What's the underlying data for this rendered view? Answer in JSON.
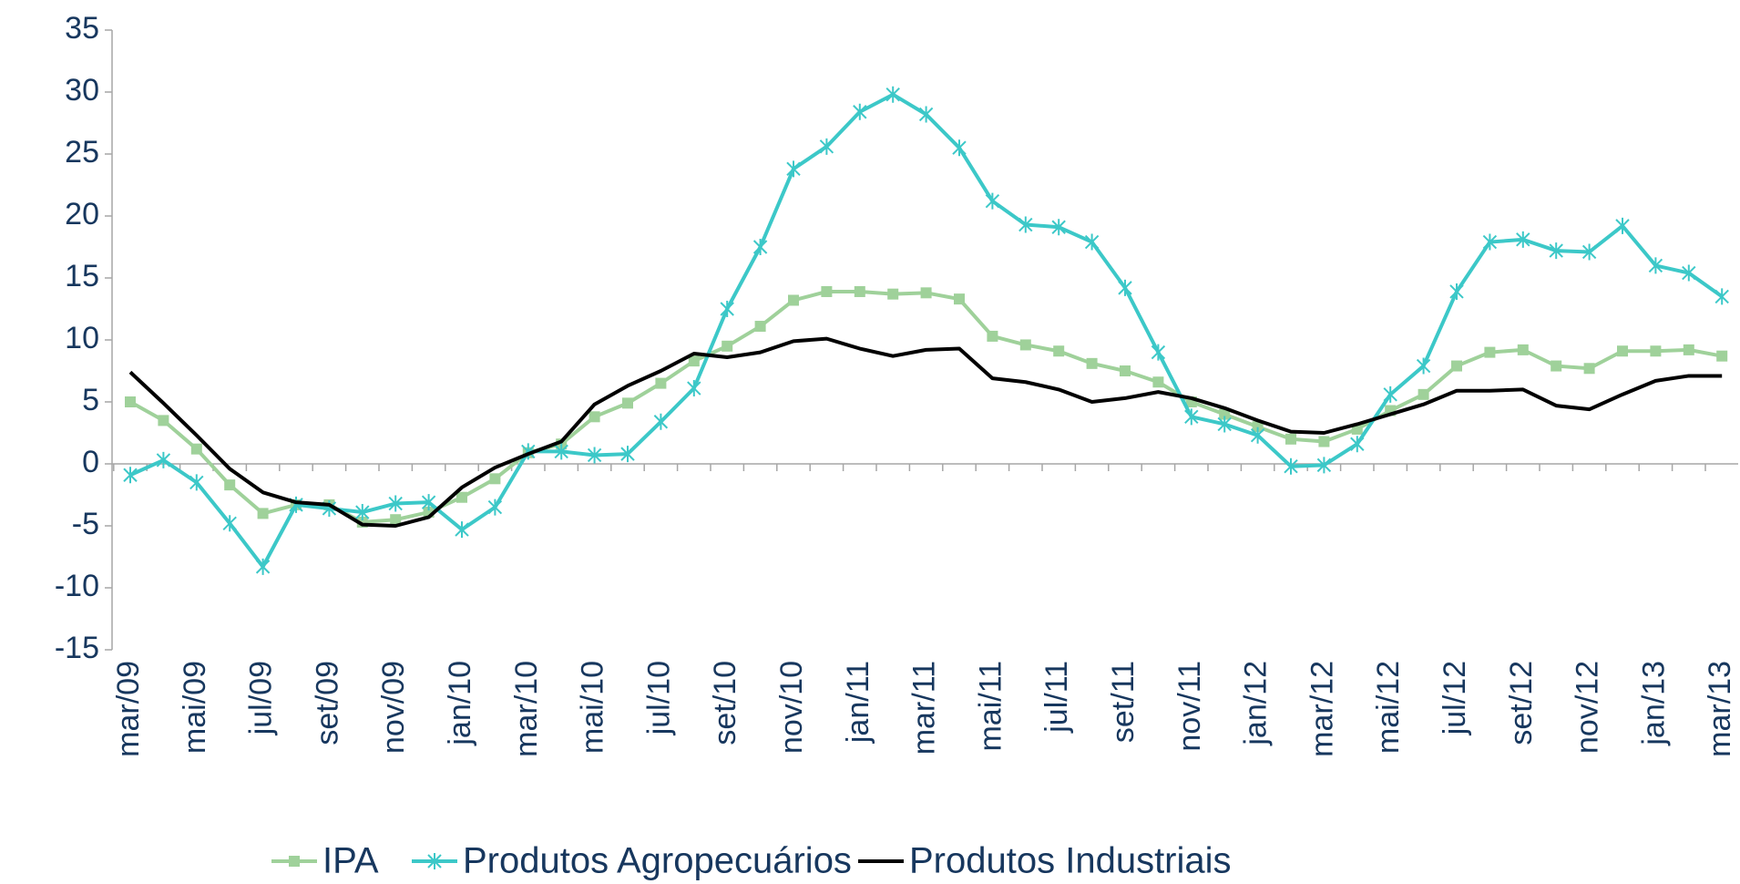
{
  "chart_data": {
    "type": "line",
    "categories": [
      "mar/09",
      null,
      "mai/09",
      null,
      "jul/09",
      null,
      "set/09",
      null,
      "nov/09",
      null,
      "jan/10",
      null,
      "mar/10",
      null,
      "mai/10",
      null,
      "jul/10",
      null,
      "set/10",
      null,
      "nov/10",
      null,
      "jan/11",
      null,
      "mar/11",
      null,
      "mai/11",
      null,
      "jul/11",
      null,
      "set/11",
      null,
      "nov/11",
      null,
      "jan/12",
      null,
      "mar/12",
      null,
      "mai/12",
      null,
      "jul/12",
      null,
      "set/12",
      null,
      "nov/12",
      null,
      "jan/13",
      null,
      "mar/13"
    ],
    "series": [
      {
        "name": "IPA",
        "color": "#9fd19a",
        "marker": "square",
        "values": [
          5.0,
          3.5,
          1.2,
          -1.7,
          -4.0,
          -3.3,
          -3.3,
          -4.7,
          -4.5,
          -3.9,
          -2.7,
          -1.2,
          0.9,
          1.6,
          3.8,
          4.9,
          6.5,
          8.3,
          9.5,
          11.1,
          13.2,
          13.9,
          13.9,
          13.7,
          13.8,
          13.3,
          10.3,
          9.6,
          9.1,
          8.1,
          7.5,
          6.6,
          5.0,
          4.0,
          3.0,
          2.0,
          1.8,
          2.8,
          4.3,
          5.6,
          7.9,
          9.0,
          9.2,
          7.9,
          7.7,
          9.1,
          9.1,
          9.2,
          8.7
        ]
      },
      {
        "name": "Produtos Agropecuários",
        "color": "#3cc8c8",
        "marker": "star",
        "values": [
          -0.9,
          0.3,
          -1.5,
          -4.8,
          -8.3,
          -3.3,
          -3.6,
          -3.9,
          -3.2,
          -3.1,
          -5.3,
          -3.5,
          1.0,
          1.0,
          0.7,
          0.8,
          3.4,
          6.1,
          12.5,
          17.5,
          23.8,
          25.6,
          28.4,
          29.8,
          28.2,
          25.5,
          21.2,
          19.3,
          19.1,
          17.9,
          14.2,
          9.0,
          3.8,
          3.2,
          2.3,
          -0.2,
          -0.1,
          1.6,
          5.6,
          7.9,
          13.9,
          17.9,
          18.1,
          17.2,
          17.1,
          19.2,
          16.0,
          15.4,
          13.5
        ]
      },
      {
        "name": "Produtos Industriais",
        "color": "#000000",
        "marker": "none",
        "values": [
          7.4,
          4.9,
          2.3,
          -0.4,
          -2.3,
          -3.1,
          -3.3,
          -4.9,
          -5.0,
          -4.3,
          -1.9,
          -0.3,
          0.8,
          1.8,
          4.8,
          6.3,
          7.5,
          8.9,
          8.6,
          9.0,
          9.9,
          10.1,
          9.3,
          8.7,
          9.2,
          9.3,
          6.9,
          6.6,
          6.0,
          5.0,
          5.3,
          5.8,
          5.3,
          4.5,
          3.5,
          2.6,
          2.5,
          3.2,
          4.0,
          4.8,
          5.9,
          5.9,
          6.0,
          4.7,
          4.4,
          5.6,
          6.7,
          7.1,
          7.1
        ]
      }
    ],
    "ylim": [
      -15,
      35
    ],
    "yticks": [
      -15,
      -10,
      -5,
      0,
      5,
      10,
      15,
      20,
      25,
      30,
      35
    ],
    "legend": "bottom"
  }
}
